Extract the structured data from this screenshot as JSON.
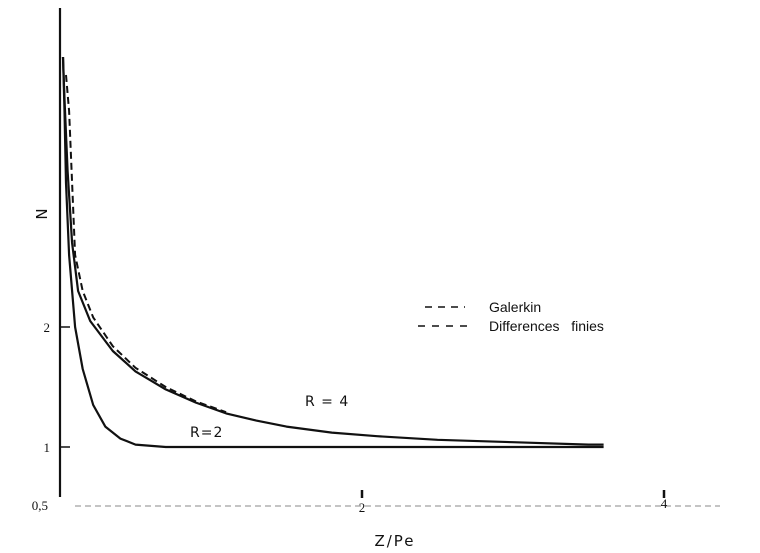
{
  "chart_data": {
    "type": "line",
    "xlabel": "Z/Pe",
    "ylabel": "N",
    "x_tick_labels": [
      "0,5",
      "2",
      "4"
    ],
    "y_tick_labels": [
      "1",
      "2"
    ],
    "xlim": [
      0.5,
      4.2
    ],
    "ylim": [
      0.85,
      4.3
    ],
    "grid": false,
    "legend_position": "right",
    "legend": [
      {
        "label": "Galerkin",
        "style": "dashed"
      },
      {
        "label": "Differences   finies",
        "style": "dashed"
      }
    ],
    "series": [
      {
        "name": "R = 4",
        "style": "solid",
        "x": [
          0.52,
          0.53,
          0.55,
          0.58,
          0.62,
          0.7,
          0.85,
          1.0,
          1.2,
          1.4,
          1.6,
          1.8,
          2.0,
          2.3,
          2.6,
          3.0,
          3.5,
          4.0,
          4.1
        ],
        "y": [
          4.25,
          3.9,
          3.3,
          2.7,
          2.3,
          2.05,
          1.8,
          1.63,
          1.48,
          1.37,
          1.28,
          1.22,
          1.17,
          1.12,
          1.09,
          1.06,
          1.04,
          1.02,
          1.02
        ]
      },
      {
        "name": "R = 4",
        "style": "dashed",
        "x": [
          0.54,
          0.56,
          0.58,
          0.6,
          0.65,
          0.72,
          0.85,
          1.0,
          1.2,
          1.4,
          1.6
        ],
        "y": [
          4.1,
          3.8,
          3.2,
          2.6,
          2.3,
          2.08,
          1.84,
          1.66,
          1.5,
          1.38,
          1.29
        ]
      },
      {
        "name": "R = 2",
        "style": "solid",
        "x": [
          0.52,
          0.53,
          0.54,
          0.56,
          0.6,
          0.65,
          0.72,
          0.8,
          0.9,
          1.0,
          1.2,
          1.5,
          2.0,
          3.0,
          4.0,
          4.1
        ],
        "y": [
          4.25,
          3.8,
          3.2,
          2.6,
          2.0,
          1.65,
          1.35,
          1.17,
          1.07,
          1.02,
          1.0,
          1.0,
          1.0,
          1.0,
          1.0,
          1.0
        ]
      }
    ],
    "annotations": [
      {
        "text": "R = 4",
        "x": 1.98,
        "y": 1.24
      },
      {
        "text": "R=2",
        "x": 1.45,
        "y": 1.06
      }
    ]
  }
}
